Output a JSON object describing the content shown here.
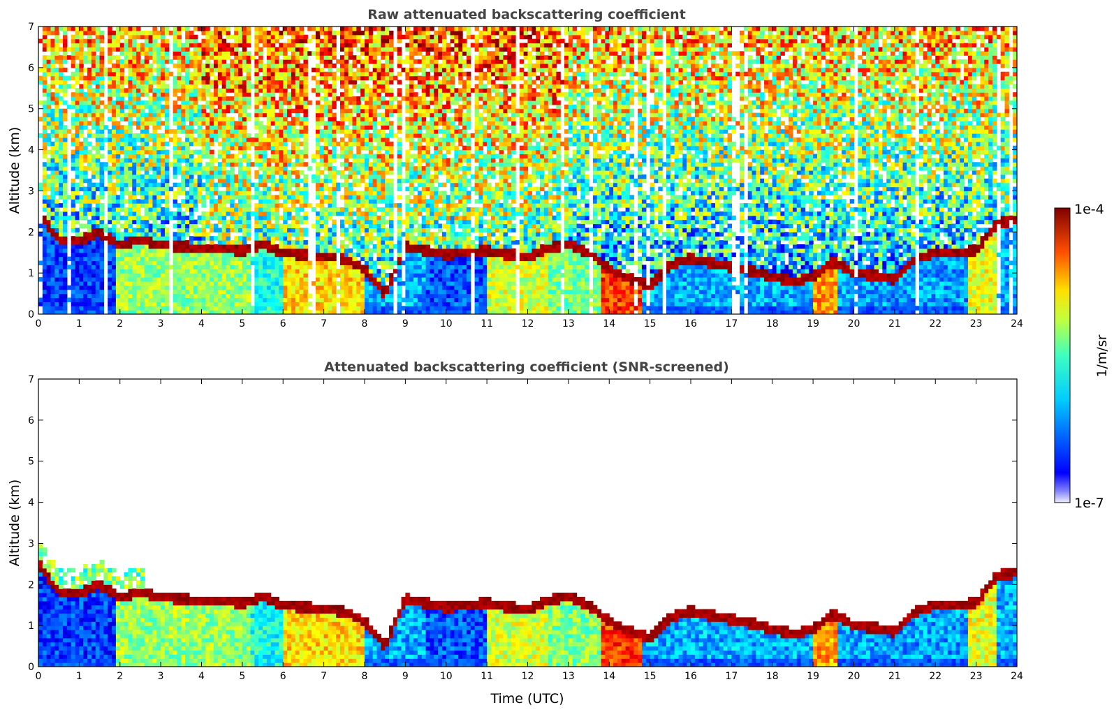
{
  "chart_data": [
    {
      "type": "heatmap",
      "title": "Raw attenuated backscattering coefficient",
      "xlabel": "",
      "ylabel": "Altitude (km)",
      "xlim": [
        0,
        24
      ],
      "ylim": [
        0,
        7
      ],
      "x_ticks": [
        "0",
        "1",
        "2",
        "3",
        "4",
        "5",
        "6",
        "7",
        "8",
        "9",
        "10",
        "11",
        "12",
        "13",
        "14",
        "15",
        "16",
        "17",
        "18",
        "19",
        "20",
        "21",
        "22",
        "23",
        "24"
      ],
      "y_ticks": [
        "0",
        "1",
        "2",
        "3",
        "4",
        "5",
        "6",
        "7"
      ],
      "screened": false,
      "cloud_layer": {
        "time": [
          0,
          0.5,
          1,
          1.5,
          2,
          2.5,
          3,
          3.5,
          4,
          4.5,
          5,
          5.5,
          6,
          6.5,
          7,
          7.5,
          8,
          8.5,
          9,
          9.5,
          10,
          10.5,
          11,
          11.5,
          12,
          12.5,
          13,
          13.5,
          14,
          14.5,
          15,
          15.5,
          16,
          16.5,
          17,
          17.5,
          18,
          18.5,
          19,
          19.5,
          20,
          20.5,
          21,
          21.5,
          22,
          22.5,
          23,
          23.5,
          24
        ],
        "altitude_km": [
          2.5,
          1.8,
          1.8,
          2.0,
          1.7,
          1.8,
          1.7,
          1.65,
          1.6,
          1.6,
          1.55,
          1.7,
          1.5,
          1.45,
          1.4,
          1.35,
          1.1,
          0.5,
          1.65,
          1.55,
          1.45,
          1.5,
          1.55,
          1.45,
          1.4,
          1.6,
          1.7,
          1.5,
          1.1,
          0.85,
          0.7,
          1.2,
          1.35,
          1.25,
          1.15,
          1.05,
          0.9,
          0.8,
          0.9,
          1.3,
          1.0,
          0.95,
          0.85,
          1.35,
          1.5,
          1.5,
          1.55,
          2.2,
          2.3
        ]
      },
      "colorbar": {
        "label": "1/m/sr",
        "min_label": "1e-7",
        "max_label": "1e-4",
        "scale": "log",
        "colormap": "jet"
      }
    },
    {
      "type": "heatmap",
      "title": "Attenuated backscattering coefficient (SNR-screened)",
      "xlabel": "Time (UTC)",
      "ylabel": "Altitude (km)",
      "xlim": [
        0,
        24
      ],
      "ylim": [
        0,
        7
      ],
      "x_ticks": [
        "0",
        "1",
        "2",
        "3",
        "4",
        "5",
        "6",
        "7",
        "8",
        "9",
        "10",
        "11",
        "12",
        "13",
        "14",
        "15",
        "16",
        "17",
        "18",
        "19",
        "20",
        "21",
        "22",
        "23",
        "24"
      ],
      "y_ticks": [
        "0",
        "1",
        "2",
        "3",
        "4",
        "5",
        "6",
        "7"
      ],
      "screened": true,
      "colorbar": {
        "label": "1/m/sr",
        "min_label": "1e-7",
        "max_label": "1e-4",
        "scale": "log",
        "colormap": "jet"
      }
    }
  ]
}
